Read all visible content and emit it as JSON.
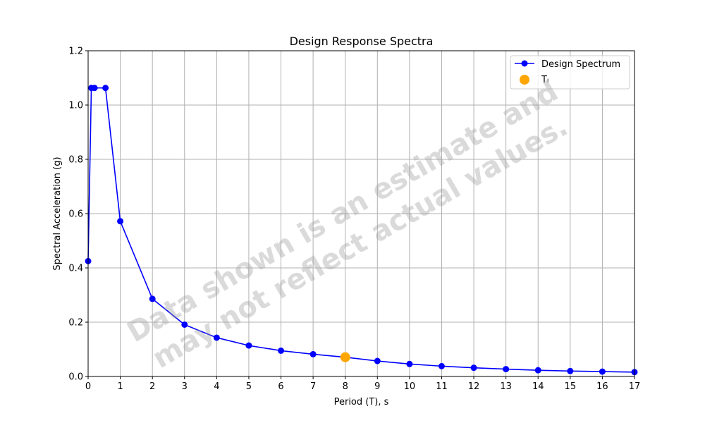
{
  "chart_data": {
    "type": "line",
    "title": "Design Response Spectra",
    "xlabel": "Period (T), s",
    "ylabel": "Spectral Acceleration (g)",
    "xlim": [
      0,
      17
    ],
    "ylim": [
      0,
      1.2
    ],
    "xticks": [
      0,
      1,
      2,
      3,
      4,
      5,
      6,
      7,
      8,
      9,
      10,
      11,
      12,
      13,
      14,
      15,
      16,
      17
    ],
    "yticks": [
      "0.0",
      "0.2",
      "0.4",
      "0.6",
      "0.8",
      "1.0",
      "1.2"
    ],
    "grid": true,
    "legend_position": "top-right",
    "series": [
      {
        "name": "Design Spectrum",
        "color": "#0000ff",
        "marker": "circle",
        "x": [
          0,
          0.1,
          0.2,
          0.54,
          1,
          2,
          3,
          4,
          5,
          6,
          7,
          8,
          9,
          10,
          11,
          12,
          13,
          14,
          15,
          16,
          17
        ],
        "y": [
          0.425,
          1.063,
          1.063,
          1.063,
          0.572,
          0.286,
          0.191,
          0.143,
          0.114,
          0.095,
          0.082,
          0.071,
          0.057,
          0.046,
          0.038,
          0.032,
          0.027,
          0.023,
          0.02,
          0.018,
          0.016
        ]
      },
      {
        "name": "Tₗ",
        "color": "#ffa500",
        "marker": "circle",
        "x": [
          8
        ],
        "y": [
          0.071
        ]
      }
    ]
  },
  "watermark": {
    "line1": "Data shown is an estimate and",
    "line2": "may not reflect actual values."
  }
}
